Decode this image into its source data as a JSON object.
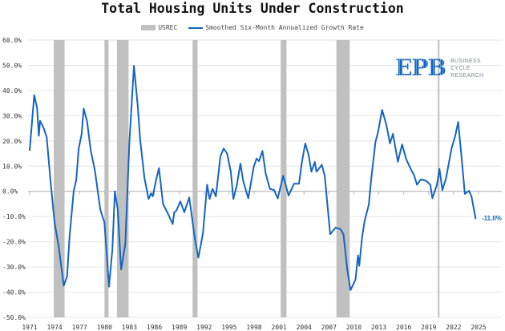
{
  "chart_data": {
    "type": "line",
    "title": "Total Housing Units Under Construction",
    "legend": [
      "USREC",
      "Smoothed Six-Month Annualized Growth Rate"
    ],
    "legend_placement": "top-center",
    "xlabel": "",
    "ylabel": "",
    "xlim": [
      1970.8,
      2027.6
    ],
    "ylim": [
      -50,
      60
    ],
    "y_ticks": [
      60,
      50,
      40,
      30,
      20,
      10,
      0,
      -10,
      -20,
      -30,
      -40,
      -50
    ],
    "y_tick_labels": [
      "60.0%",
      "50.0%",
      "40.0%",
      "30.0%",
      "20.0%",
      "10.0%",
      "0.0%",
      "-10.0%",
      "-20.0%",
      "-30.0%",
      "-40.0%",
      "-50.0%"
    ],
    "x_ticks": [
      1971,
      1974,
      1977,
      1980,
      1983,
      1986,
      1989,
      1992,
      1995,
      1998,
      2001,
      2004,
      2007,
      2010,
      2013,
      2016,
      2019,
      2022,
      2025
    ],
    "x_tick_labels": [
      "1971",
      "1974",
      "1977",
      "1980",
      "1983",
      "1986",
      "1989",
      "1992",
      "1995",
      "1998",
      "2001",
      "2004",
      "2007",
      "2010",
      "2013",
      "2016",
      "2019",
      "2022",
      "2025"
    ],
    "grid": true,
    "recessions": [
      [
        1973.9,
        1975.2
      ],
      [
        1980.0,
        1980.5
      ],
      [
        1981.5,
        1982.9
      ],
      [
        1990.6,
        1991.2
      ],
      [
        2001.2,
        2001.9
      ],
      [
        2007.9,
        2009.5
      ],
      [
        2020.1,
        2020.3
      ]
    ],
    "series": [
      {
        "name": "Smoothed Six-Month Annualized Growth Rate",
        "color": "#1565c0",
        "x": [
          1971.0,
          1971.55,
          1971.9,
          1972.1,
          1972.25,
          1972.7,
          1973.05,
          1973.5,
          1974.0,
          1974.5,
          1975.1,
          1975.5,
          1975.8,
          1976.3,
          1976.6,
          1976.9,
          1977.25,
          1977.5,
          1977.9,
          1978.35,
          1978.85,
          1979.5,
          1980.0,
          1980.55,
          1980.95,
          1981.25,
          1981.6,
          1982.0,
          1982.5,
          1983.0,
          1983.55,
          1984.0,
          1984.3,
          1984.8,
          1985.3,
          1985.6,
          1985.8,
          1986.25,
          1986.55,
          1987.05,
          1987.7,
          1988.2,
          1988.4,
          1988.65,
          1989.13,
          1989.6,
          1990.2,
          1990.9,
          1991.3,
          1991.85,
          1992.35,
          1992.65,
          1993.0,
          1993.4,
          1993.95,
          1994.35,
          1994.75,
          1995.2,
          1995.5,
          1995.9,
          1996.35,
          1996.7,
          1997.3,
          1997.95,
          1998.3,
          1998.6,
          1999.0,
          1999.4,
          1999.9,
          2000.4,
          2000.85,
          2001.5,
          2002.15,
          2002.8,
          2003.4,
          2003.75,
          2004.15,
          2004.55,
          2004.9,
          2005.3,
          2005.5,
          2006.15,
          2006.5,
          2007.15,
          2007.8,
          2008.4,
          2008.75,
          2009.2,
          2009.6,
          2009.85,
          2010.2,
          2010.5,
          2010.65,
          2011.0,
          2011.3,
          2011.8,
          2012.1,
          2012.6,
          2012.9,
          2013.4,
          2013.9,
          2014.35,
          2014.7,
          2015.3,
          2015.8,
          2016.3,
          2016.9,
          2017.25,
          2017.6,
          2018.05,
          2018.7,
          2019.2,
          2019.45,
          2020.0,
          2020.3,
          2020.65,
          2021.1,
          2021.75,
          2022.2,
          2022.55,
          2022.9,
          2023.35,
          2023.85,
          2024.15,
          2024.65
        ],
        "values": [
          16.1,
          38.2,
          33,
          22,
          28,
          25,
          21.4,
          4.5,
          -12.4,
          -22,
          -37.4,
          -33.7,
          -17.8,
          0.3,
          4.5,
          17,
          22.6,
          32.8,
          27.8,
          16.2,
          8.3,
          -7.2,
          -12.4,
          -37.8,
          -23,
          0,
          -7.2,
          -31,
          -21,
          19.4,
          49.8,
          34,
          20.3,
          5.5,
          -3,
          -0.8,
          -2,
          5,
          9.2,
          -5,
          -9.3,
          -13,
          -8.3,
          -7.7,
          -4,
          -8.3,
          -2.4,
          -19.4,
          -26.3,
          -16.6,
          2.6,
          -3,
          1,
          -2,
          14,
          17,
          15,
          7.7,
          -3,
          2,
          11,
          4,
          -2.8,
          9.7,
          13,
          12,
          16,
          7,
          1,
          0.5,
          -2.8,
          6.2,
          -1.7,
          3,
          3,
          11.5,
          19,
          14.6,
          7.8,
          11.6,
          7.8,
          10.5,
          6.2,
          -17,
          -14.4,
          -15,
          -17,
          -30.7,
          -39.2,
          -37.4,
          -35,
          -25.4,
          -29.5,
          -18,
          -11.7,
          -5.3,
          5.2,
          19.6,
          23.3,
          32.3,
          26.5,
          19,
          22.8,
          11.7,
          18.6,
          12.7,
          8.5,
          6.4,
          2.6,
          4.7,
          4.2,
          2.6,
          -2.7,
          2.6,
          8.9,
          0.5,
          5.3,
          17,
          22,
          27.5,
          15.5,
          -1,
          0.2,
          -2,
          -11
        ],
        "end_label": "-11.0%"
      }
    ],
    "recession_color": "#c0c0c0"
  },
  "logo": {
    "mark": "EPB",
    "line1": "BUSINESS",
    "line2": "CYCLE",
    "line3": "RESEARCH"
  }
}
